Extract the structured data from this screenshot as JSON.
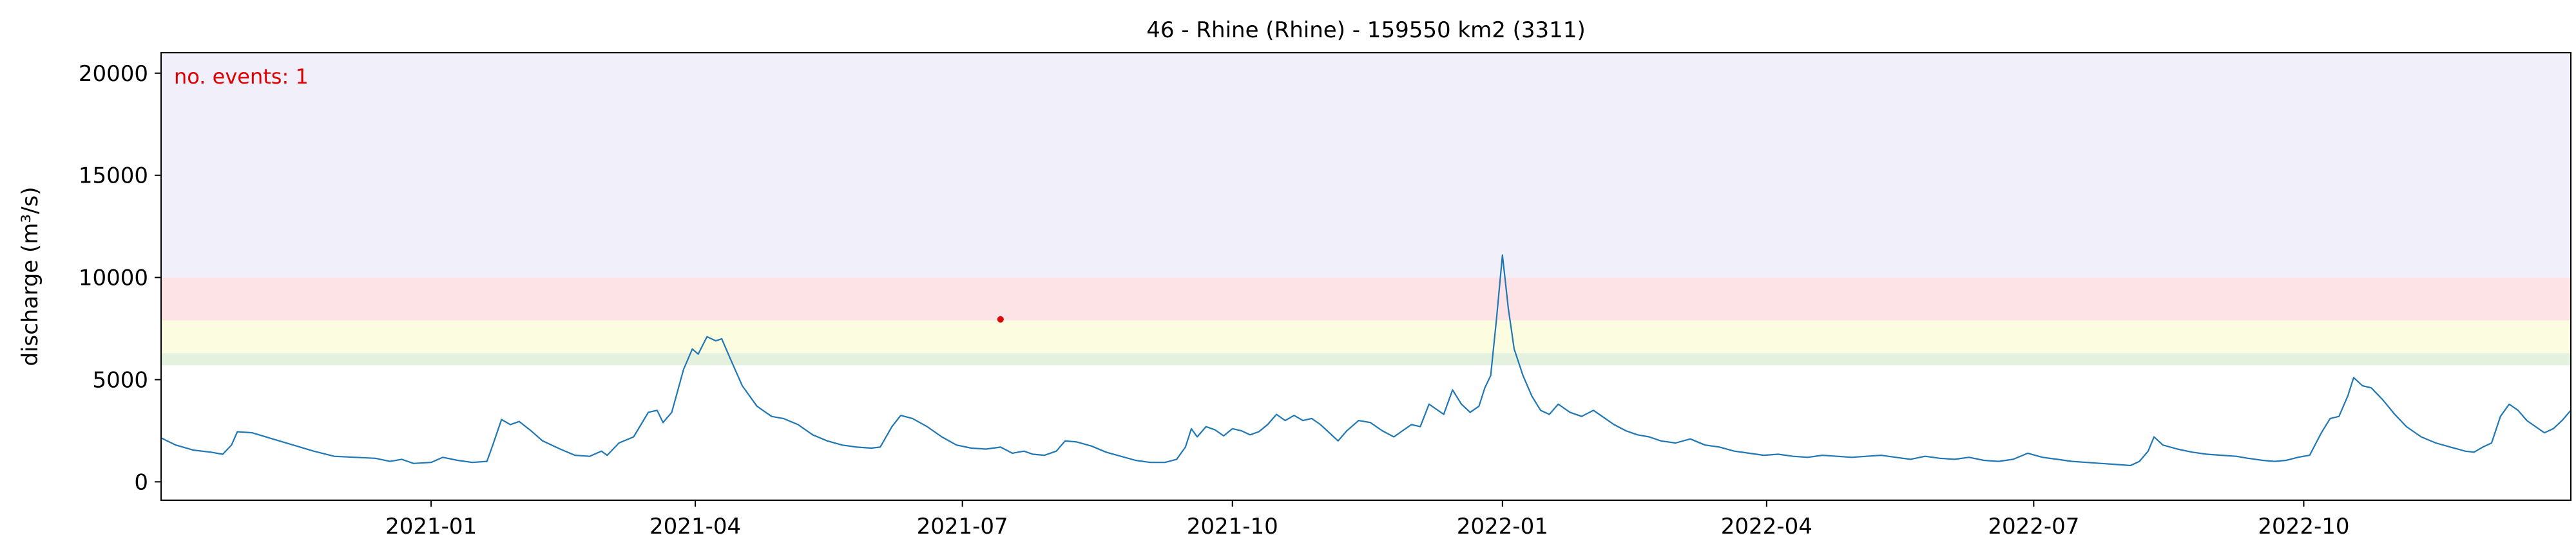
{
  "chart_data": {
    "type": "line",
    "title": "46 - Rhine (Rhine) - 159550 km2 (3311)",
    "xlabel": "",
    "ylabel": "discharge (m³/s)",
    "annotation": "no. events: 1",
    "xlim": [
      "2020-10-01",
      "2022-12-31"
    ],
    "ylim": [
      -900,
      21000
    ],
    "grid": false,
    "x_ticks": [
      {
        "date": "2021-01-01",
        "label": "2021-01"
      },
      {
        "date": "2021-04-01",
        "label": "2021-04"
      },
      {
        "date": "2021-07-01",
        "label": "2021-07"
      },
      {
        "date": "2021-10-01",
        "label": "2021-10"
      },
      {
        "date": "2022-01-01",
        "label": "2022-01"
      },
      {
        "date": "2022-04-01",
        "label": "2022-04"
      },
      {
        "date": "2022-07-01",
        "label": "2022-07"
      },
      {
        "date": "2022-10-01",
        "label": "2022-10"
      }
    ],
    "y_ticks": [
      0,
      5000,
      10000,
      15000,
      20000
    ],
    "threshold_bands": [
      {
        "from": 5700,
        "to": 6300,
        "color": "#e3f1de"
      },
      {
        "from": 6300,
        "to": 7900,
        "color": "#fcfce0"
      },
      {
        "from": 7900,
        "to": 10000,
        "color": "#fde3e6"
      },
      {
        "from": 10000,
        "to": 21000,
        "color": "#f1effa"
      }
    ],
    "series": [
      {
        "color": "#1f77b4",
        "points": [
          [
            "2020-10-01",
            2150
          ],
          [
            "2020-10-06",
            1800
          ],
          [
            "2020-10-12",
            1550
          ],
          [
            "2020-10-18",
            1450
          ],
          [
            "2020-10-22",
            1350
          ],
          [
            "2020-10-25",
            1800
          ],
          [
            "2020-10-27",
            2450
          ],
          [
            "2020-11-01",
            2400
          ],
          [
            "2020-11-08",
            2100
          ],
          [
            "2020-11-15",
            1800
          ],
          [
            "2020-11-22",
            1500
          ],
          [
            "2020-11-29",
            1250
          ],
          [
            "2020-12-06",
            1200
          ],
          [
            "2020-12-13",
            1150
          ],
          [
            "2020-12-18",
            1000
          ],
          [
            "2020-12-22",
            1100
          ],
          [
            "2020-12-26",
            900
          ],
          [
            "2021-01-01",
            950
          ],
          [
            "2021-01-05",
            1200
          ],
          [
            "2021-01-10",
            1050
          ],
          [
            "2021-01-15",
            950
          ],
          [
            "2021-01-20",
            1000
          ],
          [
            "2021-01-22",
            1800
          ],
          [
            "2021-01-25",
            3050
          ],
          [
            "2021-01-28",
            2800
          ],
          [
            "2021-01-31",
            2950
          ],
          [
            "2021-02-04",
            2500
          ],
          [
            "2021-02-08",
            2000
          ],
          [
            "2021-02-14",
            1600
          ],
          [
            "2021-02-19",
            1300
          ],
          [
            "2021-02-24",
            1250
          ],
          [
            "2021-02-28",
            1500
          ],
          [
            "2021-03-02",
            1300
          ],
          [
            "2021-03-06",
            1900
          ],
          [
            "2021-03-11",
            2200
          ],
          [
            "2021-03-16",
            3400
          ],
          [
            "2021-03-19",
            3500
          ],
          [
            "2021-03-21",
            2900
          ],
          [
            "2021-03-24",
            3400
          ],
          [
            "2021-03-28",
            5500
          ],
          [
            "2021-03-31",
            6500
          ],
          [
            "2021-04-02",
            6250
          ],
          [
            "2021-04-05",
            7100
          ],
          [
            "2021-04-08",
            6900
          ],
          [
            "2021-04-10",
            7000
          ],
          [
            "2021-04-13",
            6000
          ],
          [
            "2021-04-17",
            4700
          ],
          [
            "2021-04-22",
            3700
          ],
          [
            "2021-04-27",
            3200
          ],
          [
            "2021-05-01",
            3100
          ],
          [
            "2021-05-06",
            2800
          ],
          [
            "2021-05-11",
            2300
          ],
          [
            "2021-05-16",
            2000
          ],
          [
            "2021-05-21",
            1800
          ],
          [
            "2021-05-26",
            1700
          ],
          [
            "2021-05-31",
            1650
          ],
          [
            "2021-06-03",
            1700
          ],
          [
            "2021-06-07",
            2700
          ],
          [
            "2021-06-10",
            3250
          ],
          [
            "2021-06-14",
            3100
          ],
          [
            "2021-06-19",
            2700
          ],
          [
            "2021-06-24",
            2200
          ],
          [
            "2021-06-29",
            1800
          ],
          [
            "2021-07-04",
            1650
          ],
          [
            "2021-07-09",
            1600
          ],
          [
            "2021-07-14",
            1700
          ],
          [
            "2021-07-18",
            1400
          ],
          [
            "2021-07-22",
            1500
          ],
          [
            "2021-07-25",
            1350
          ],
          [
            "2021-07-29",
            1300
          ],
          [
            "2021-08-02",
            1500
          ],
          [
            "2021-08-05",
            2000
          ],
          [
            "2021-08-09",
            1950
          ],
          [
            "2021-08-14",
            1750
          ],
          [
            "2021-08-19",
            1450
          ],
          [
            "2021-08-24",
            1250
          ],
          [
            "2021-08-29",
            1050
          ],
          [
            "2021-09-03",
            950
          ],
          [
            "2021-09-08",
            950
          ],
          [
            "2021-09-12",
            1100
          ],
          [
            "2021-09-15",
            1700
          ],
          [
            "2021-09-17",
            2600
          ],
          [
            "2021-09-19",
            2200
          ],
          [
            "2021-09-22",
            2700
          ],
          [
            "2021-09-25",
            2550
          ],
          [
            "2021-09-28",
            2250
          ],
          [
            "2021-10-01",
            2600
          ],
          [
            "2021-10-04",
            2500
          ],
          [
            "2021-10-07",
            2300
          ],
          [
            "2021-10-10",
            2450
          ],
          [
            "2021-10-13",
            2800
          ],
          [
            "2021-10-16",
            3300
          ],
          [
            "2021-10-19",
            3000
          ],
          [
            "2021-10-22",
            3250
          ],
          [
            "2021-10-25",
            3000
          ],
          [
            "2021-10-28",
            3100
          ],
          [
            "2021-10-31",
            2800
          ],
          [
            "2021-11-03",
            2400
          ],
          [
            "2021-11-06",
            2000
          ],
          [
            "2021-11-09",
            2500
          ],
          [
            "2021-11-13",
            3000
          ],
          [
            "2021-11-17",
            2900
          ],
          [
            "2021-11-21",
            2500
          ],
          [
            "2021-11-25",
            2200
          ],
          [
            "2021-11-28",
            2500
          ],
          [
            "2021-12-01",
            2800
          ],
          [
            "2021-12-04",
            2700
          ],
          [
            "2021-12-07",
            3800
          ],
          [
            "2021-12-10",
            3500
          ],
          [
            "2021-12-12",
            3300
          ],
          [
            "2021-12-15",
            4500
          ],
          [
            "2021-12-18",
            3800
          ],
          [
            "2021-12-21",
            3400
          ],
          [
            "2021-12-24",
            3700
          ],
          [
            "2021-12-26",
            4600
          ],
          [
            "2021-12-28",
            5200
          ],
          [
            "2021-12-30",
            8000
          ],
          [
            "2022-01-01",
            11100
          ],
          [
            "2022-01-03",
            8500
          ],
          [
            "2022-01-05",
            6500
          ],
          [
            "2022-01-08",
            5200
          ],
          [
            "2022-01-11",
            4200
          ],
          [
            "2022-01-14",
            3500
          ],
          [
            "2022-01-17",
            3300
          ],
          [
            "2022-01-20",
            3800
          ],
          [
            "2022-01-24",
            3400
          ],
          [
            "2022-01-28",
            3200
          ],
          [
            "2022-02-01",
            3500
          ],
          [
            "2022-02-04",
            3200
          ],
          [
            "2022-02-08",
            2800
          ],
          [
            "2022-02-12",
            2500
          ],
          [
            "2022-02-16",
            2300
          ],
          [
            "2022-02-20",
            2200
          ],
          [
            "2022-02-24",
            2000
          ],
          [
            "2022-03-01",
            1900
          ],
          [
            "2022-03-06",
            2100
          ],
          [
            "2022-03-11",
            1800
          ],
          [
            "2022-03-16",
            1700
          ],
          [
            "2022-03-21",
            1500
          ],
          [
            "2022-03-26",
            1400
          ],
          [
            "2022-03-31",
            1300
          ],
          [
            "2022-04-05",
            1350
          ],
          [
            "2022-04-10",
            1250
          ],
          [
            "2022-04-15",
            1200
          ],
          [
            "2022-04-20",
            1300
          ],
          [
            "2022-04-25",
            1250
          ],
          [
            "2022-04-30",
            1200
          ],
          [
            "2022-05-05",
            1250
          ],
          [
            "2022-05-10",
            1300
          ],
          [
            "2022-05-15",
            1200
          ],
          [
            "2022-05-20",
            1100
          ],
          [
            "2022-05-25",
            1250
          ],
          [
            "2022-05-30",
            1150
          ],
          [
            "2022-06-04",
            1100
          ],
          [
            "2022-06-09",
            1200
          ],
          [
            "2022-06-14",
            1050
          ],
          [
            "2022-06-19",
            1000
          ],
          [
            "2022-06-24",
            1100
          ],
          [
            "2022-06-29",
            1400
          ],
          [
            "2022-07-04",
            1200
          ],
          [
            "2022-07-09",
            1100
          ],
          [
            "2022-07-14",
            1000
          ],
          [
            "2022-07-19",
            950
          ],
          [
            "2022-07-24",
            900
          ],
          [
            "2022-07-29",
            850
          ],
          [
            "2022-08-03",
            800
          ],
          [
            "2022-08-06",
            1000
          ],
          [
            "2022-08-09",
            1500
          ],
          [
            "2022-08-11",
            2200
          ],
          [
            "2022-08-14",
            1800
          ],
          [
            "2022-08-19",
            1600
          ],
          [
            "2022-08-24",
            1450
          ],
          [
            "2022-08-29",
            1350
          ],
          [
            "2022-09-03",
            1300
          ],
          [
            "2022-09-08",
            1250
          ],
          [
            "2022-09-12",
            1150
          ],
          [
            "2022-09-17",
            1050
          ],
          [
            "2022-09-21",
            1000
          ],
          [
            "2022-09-25",
            1050
          ],
          [
            "2022-09-29",
            1200
          ],
          [
            "2022-10-03",
            1300
          ],
          [
            "2022-10-07",
            2400
          ],
          [
            "2022-10-10",
            3100
          ],
          [
            "2022-10-13",
            3200
          ],
          [
            "2022-10-16",
            4200
          ],
          [
            "2022-10-18",
            5100
          ],
          [
            "2022-10-21",
            4700
          ],
          [
            "2022-10-24",
            4600
          ],
          [
            "2022-10-28",
            4000
          ],
          [
            "2022-11-01",
            3300
          ],
          [
            "2022-11-05",
            2700
          ],
          [
            "2022-11-10",
            2200
          ],
          [
            "2022-11-15",
            1900
          ],
          [
            "2022-11-20",
            1700
          ],
          [
            "2022-11-25",
            1500
          ],
          [
            "2022-11-28",
            1450
          ],
          [
            "2022-12-01",
            1700
          ],
          [
            "2022-12-04",
            1900
          ],
          [
            "2022-12-07",
            3200
          ],
          [
            "2022-12-10",
            3800
          ],
          [
            "2022-12-13",
            3500
          ],
          [
            "2022-12-16",
            3000
          ],
          [
            "2022-12-19",
            2700
          ],
          [
            "2022-12-22",
            2400
          ],
          [
            "2022-12-25",
            2600
          ],
          [
            "2022-12-28",
            3000
          ],
          [
            "2022-12-31",
            3500
          ]
        ]
      }
    ],
    "events": [
      {
        "date": "2021-07-14",
        "value": 7950,
        "color": "#e00000"
      }
    ]
  }
}
